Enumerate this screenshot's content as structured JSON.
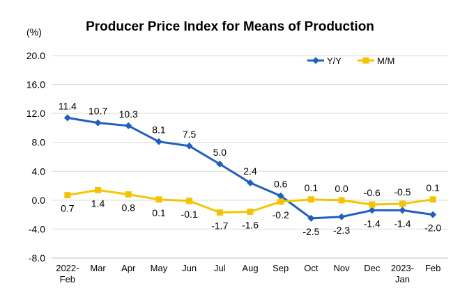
{
  "chart_data": {
    "type": "line",
    "title": "Producer Price Index for Means of Production",
    "yunit": "(%)",
    "categories": [
      "2022-Feb",
      "Mar",
      "Apr",
      "May",
      "Jun",
      "Jul",
      "Aug",
      "Sep",
      "Oct",
      "Nov",
      "Dec",
      "2023-Jan",
      "Feb"
    ],
    "ylim": [
      -8.0,
      20.0
    ],
    "yticks": [
      "20.0",
      "16.0",
      "12.0",
      "8.0",
      "4.0",
      "0.0",
      "-4.0",
      "-8.0"
    ],
    "grid": true,
    "legend": "top-right",
    "series": [
      {
        "name": "Y/Y",
        "color": "#1f5fc1",
        "marker": "diamond",
        "values": [
          11.4,
          10.7,
          10.3,
          8.1,
          7.5,
          5.0,
          2.4,
          0.6,
          -2.5,
          -2.3,
          -1.4,
          -1.4,
          -2.0
        ],
        "labels": [
          "11.4",
          "10.7",
          "10.3",
          "8.1",
          "7.5",
          "5.0",
          "2.4",
          "0.6",
          "-2.5",
          "-2.3",
          "-1.4",
          "-1.4",
          "-2.0"
        ]
      },
      {
        "name": "M/M",
        "color": "#f5c400",
        "marker": "square",
        "values": [
          0.7,
          1.4,
          0.8,
          0.1,
          -0.1,
          -1.7,
          -1.6,
          -0.2,
          0.1,
          0.0,
          -0.6,
          -0.5,
          0.1
        ],
        "labels": [
          "0.7",
          "1.4",
          "0.8",
          "0.1",
          "-0.1",
          "-1.7",
          "-1.6",
          "-0.2",
          "0.1",
          "0.0",
          "-0.6",
          "-0.5",
          "0.1"
        ]
      }
    ]
  }
}
